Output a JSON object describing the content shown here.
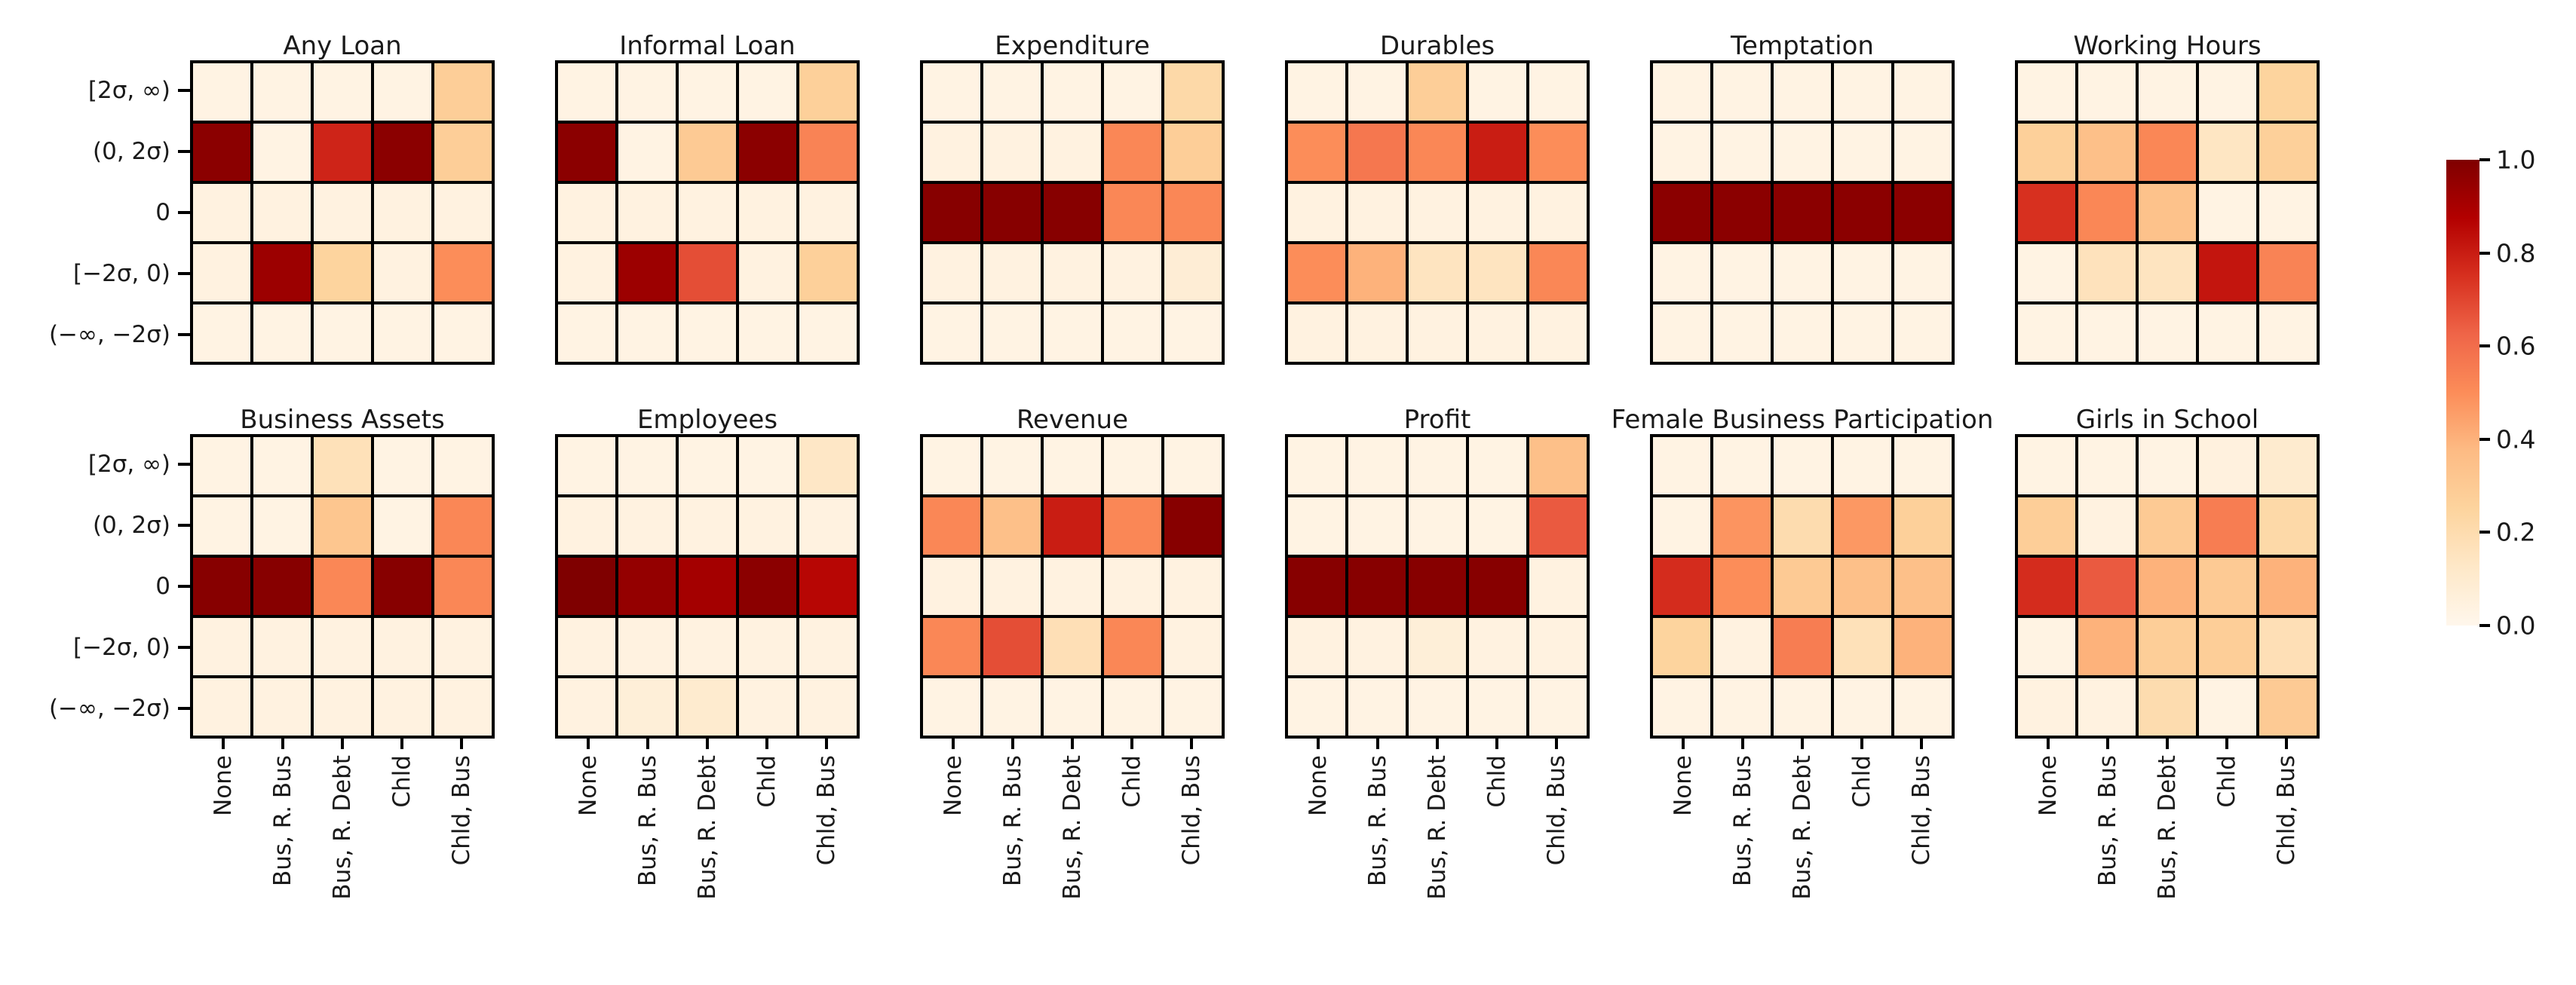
{
  "chart_data": {
    "type": "heatmap",
    "layout": "2 rows x 6 columns of 5x5 heatmaps with shared colorbar",
    "rows": [
      "[2σ, ∞)",
      "(0, 2σ)",
      "0",
      "[−2σ, 0)",
      "(−∞, −2σ)"
    ],
    "columns": [
      "None",
      "Bus, R. Bus",
      "Bus, R. Debt",
      "Chld",
      "Chld, Bus"
    ],
    "value_range": [
      0,
      1
    ],
    "panels": [
      {
        "title": "Any Loan",
        "values": [
          [
            0.03,
            0.03,
            0.03,
            0.03,
            0.28
          ],
          [
            0.97,
            0.03,
            0.78,
            0.97,
            0.28
          ],
          [
            0.04,
            0.04,
            0.04,
            0.04,
            0.04
          ],
          [
            0.04,
            0.93,
            0.25,
            0.04,
            0.5
          ],
          [
            0.03,
            0.03,
            0.03,
            0.03,
            0.03
          ]
        ]
      },
      {
        "title": "Informal Loan",
        "values": [
          [
            0.03,
            0.03,
            0.03,
            0.03,
            0.27
          ],
          [
            0.97,
            0.03,
            0.3,
            0.97,
            0.53
          ],
          [
            0.04,
            0.04,
            0.04,
            0.04,
            0.04
          ],
          [
            0.04,
            0.93,
            0.68,
            0.04,
            0.27
          ],
          [
            0.03,
            0.03,
            0.03,
            0.03,
            0.03
          ]
        ]
      },
      {
        "title": "Expenditure",
        "values": [
          [
            0.03,
            0.03,
            0.03,
            0.03,
            0.22
          ],
          [
            0.04,
            0.04,
            0.04,
            0.52,
            0.28
          ],
          [
            0.98,
            0.98,
            0.98,
            0.52,
            0.52
          ],
          [
            0.04,
            0.04,
            0.04,
            0.04,
            0.08
          ],
          [
            0.03,
            0.03,
            0.03,
            0.03,
            0.03
          ]
        ]
      },
      {
        "title": "Durables",
        "values": [
          [
            0.03,
            0.03,
            0.28,
            0.03,
            0.03
          ],
          [
            0.5,
            0.57,
            0.52,
            0.8,
            0.5
          ],
          [
            0.04,
            0.04,
            0.04,
            0.04,
            0.04
          ],
          [
            0.5,
            0.4,
            0.15,
            0.15,
            0.52
          ],
          [
            0.04,
            0.04,
            0.04,
            0.04,
            0.04
          ]
        ]
      },
      {
        "title": "Temptation",
        "values": [
          [
            0.03,
            0.03,
            0.03,
            0.03,
            0.03
          ],
          [
            0.03,
            0.03,
            0.03,
            0.03,
            0.03
          ],
          [
            0.97,
            0.97,
            0.97,
            0.97,
            0.97
          ],
          [
            0.03,
            0.03,
            0.03,
            0.03,
            0.03
          ],
          [
            0.03,
            0.03,
            0.03,
            0.03,
            0.03
          ]
        ]
      },
      {
        "title": "Working Hours",
        "values": [
          [
            0.03,
            0.03,
            0.03,
            0.03,
            0.25
          ],
          [
            0.27,
            0.35,
            0.52,
            0.14,
            0.27
          ],
          [
            0.75,
            0.52,
            0.34,
            0.03,
            0.03
          ],
          [
            0.03,
            0.16,
            0.15,
            0.82,
            0.53
          ],
          [
            0.03,
            0.03,
            0.03,
            0.03,
            0.03
          ]
        ]
      },
      {
        "title": "Business Assets",
        "values": [
          [
            0.03,
            0.03,
            0.17,
            0.03,
            0.03
          ],
          [
            0.03,
            0.03,
            0.32,
            0.03,
            0.52
          ],
          [
            0.98,
            0.98,
            0.52,
            0.98,
            0.52
          ],
          [
            0.04,
            0.04,
            0.04,
            0.04,
            0.04
          ],
          [
            0.04,
            0.04,
            0.04,
            0.04,
            0.04
          ]
        ]
      },
      {
        "title": "Employees",
        "values": [
          [
            0.03,
            0.03,
            0.03,
            0.03,
            0.13
          ],
          [
            0.04,
            0.04,
            0.04,
            0.04,
            0.04
          ],
          [
            1.0,
            0.95,
            0.91,
            0.97,
            0.86
          ],
          [
            0.04,
            0.04,
            0.04,
            0.04,
            0.04
          ],
          [
            0.04,
            0.07,
            0.1,
            0.04,
            0.04
          ]
        ]
      },
      {
        "title": "Revenue",
        "values": [
          [
            0.03,
            0.03,
            0.03,
            0.03,
            0.03
          ],
          [
            0.52,
            0.35,
            0.8,
            0.52,
            0.98
          ],
          [
            0.04,
            0.04,
            0.04,
            0.04,
            0.04
          ],
          [
            0.52,
            0.68,
            0.18,
            0.52,
            0.04
          ],
          [
            0.03,
            0.03,
            0.03,
            0.03,
            0.03
          ]
        ]
      },
      {
        "title": "Profit",
        "values": [
          [
            0.03,
            0.03,
            0.03,
            0.03,
            0.35
          ],
          [
            0.03,
            0.03,
            0.03,
            0.03,
            0.65
          ],
          [
            0.98,
            0.98,
            0.98,
            0.98,
            0.04
          ],
          [
            0.04,
            0.04,
            0.07,
            0.04,
            0.04
          ],
          [
            0.03,
            0.03,
            0.03,
            0.03,
            0.03
          ]
        ]
      },
      {
        "title": "Female Business Participation",
        "values": [
          [
            0.03,
            0.03,
            0.03,
            0.03,
            0.03
          ],
          [
            0.03,
            0.48,
            0.2,
            0.47,
            0.27
          ],
          [
            0.76,
            0.5,
            0.3,
            0.35,
            0.35
          ],
          [
            0.25,
            0.04,
            0.55,
            0.17,
            0.4
          ],
          [
            0.03,
            0.03,
            0.03,
            0.03,
            0.03
          ]
        ]
      },
      {
        "title": "Girls in School",
        "values": [
          [
            0.03,
            0.03,
            0.03,
            0.05,
            0.1
          ],
          [
            0.28,
            0.04,
            0.3,
            0.55,
            0.22
          ],
          [
            0.76,
            0.65,
            0.4,
            0.3,
            0.4
          ],
          [
            0.03,
            0.4,
            0.28,
            0.28,
            0.18
          ],
          [
            0.04,
            0.04,
            0.2,
            0.03,
            0.3
          ]
        ]
      }
    ],
    "colorbar": {
      "tick_labels_top_to_bottom": [
        "1.0",
        "0.8",
        "0.6",
        "0.4",
        "0.2",
        "0.0"
      ],
      "stops": [
        "#fff7ec",
        "#fee8c8",
        "#fdd49e",
        "#fdbb84",
        "#fc8d59",
        "#ef6548",
        "#d7301f",
        "#b30000",
        "#7f0000"
      ]
    },
    "grid_line_color": "#000000",
    "legend_position": "right"
  }
}
